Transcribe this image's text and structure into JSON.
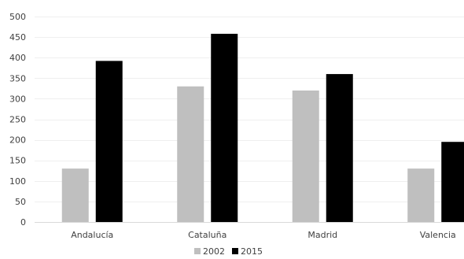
{
  "chart_data": {
    "type": "bar",
    "title": "",
    "xlabel": "",
    "ylabel": "",
    "categories": [
      "Andalucía",
      "Cataluña",
      "Madrid",
      "Valencia"
    ],
    "series": [
      {
        "name": "2002",
        "values": [
          130,
          330,
          320,
          130
        ],
        "color": "#bfbfbf"
      },
      {
        "name": "2015",
        "values": [
          392,
          458,
          360,
          195
        ],
        "color": "#000000"
      }
    ],
    "ylim": [
      0,
      500
    ],
    "yticks": [
      0,
      50,
      100,
      150,
      200,
      250,
      300,
      350,
      400,
      450,
      500
    ],
    "grid": true,
    "legend": "bottom"
  }
}
